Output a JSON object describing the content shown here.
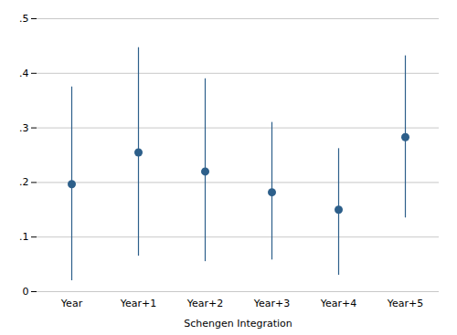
{
  "chart_data": {
    "type": "errorbar",
    "categories": [
      "Year",
      "Year+1",
      "Year+2",
      "Year+3",
      "Year+4",
      "Year+5"
    ],
    "values": [
      0.197,
      0.255,
      0.22,
      0.182,
      0.15,
      0.283
    ],
    "ci_lower": [
      0.02,
      0.065,
      0.055,
      0.058,
      0.03,
      0.135
    ],
    "ci_upper": [
      0.375,
      0.447,
      0.39,
      0.31,
      0.262,
      0.432
    ],
    "color": "#2d5f8a",
    "xlabel": "Schengen Integration",
    "ylim": [
      0,
      0.5
    ],
    "yticks": [
      0,
      {
        "value": 0.1,
        "label": ".1"
      },
      {
        "value": 0.2,
        "label": ".2"
      },
      {
        "value": 0.3,
        "label": ".3"
      },
      {
        "value": 0.4,
        "label": ".4"
      },
      {
        "value": 0.5,
        "label": ".5"
      }
    ],
    "grid": true
  }
}
